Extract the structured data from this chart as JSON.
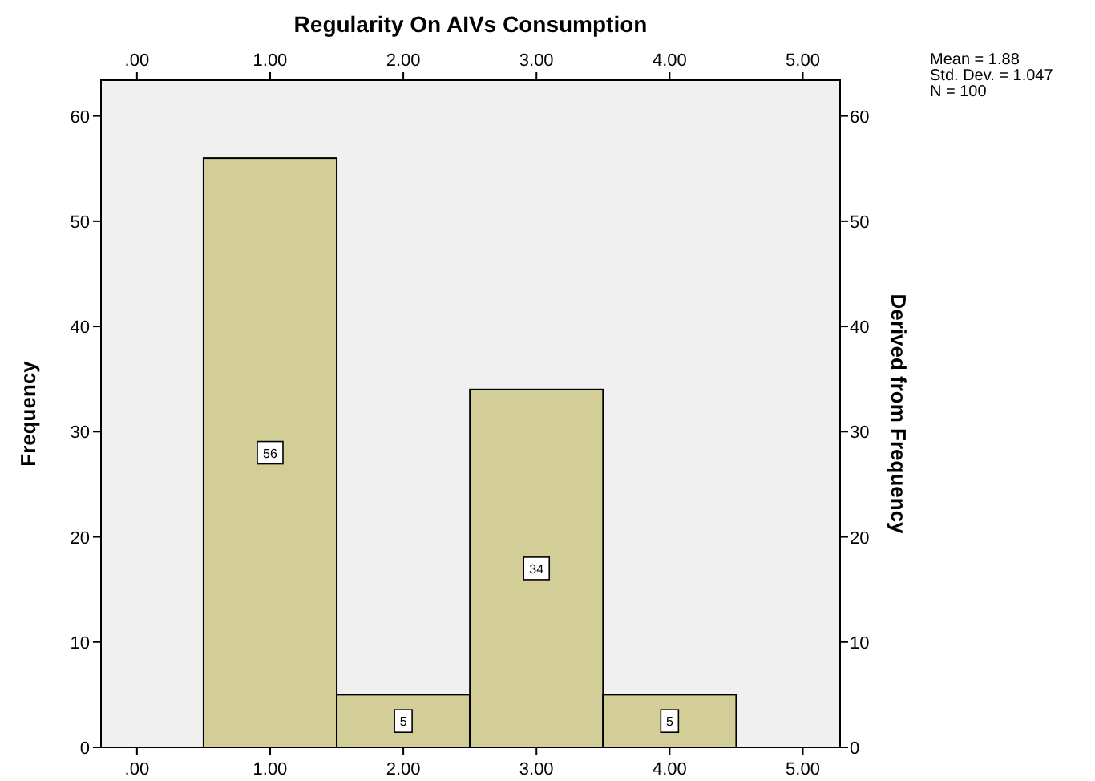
{
  "chart_data": {
    "type": "histogram",
    "title": "Regularity On AIVs Consumption",
    "ylabel": "Frequency",
    "y2label": "Derived from Frequency",
    "bins": [
      0.5,
      1.5,
      2.5,
      3.5,
      4.5
    ],
    "values": [
      56,
      5,
      34,
      5
    ],
    "color": "#d3ce97",
    "data_labels": true,
    "xlim": [
      -0.27,
      5.28
    ],
    "xticks": [
      {
        "value": 0,
        "label": ".00"
      },
      {
        "value": 1,
        "label": "1.00"
      },
      {
        "value": 2,
        "label": "2.00"
      },
      {
        "value": 3,
        "label": "3.00"
      },
      {
        "value": 4,
        "label": "4.00"
      },
      {
        "value": 5,
        "label": "5.00"
      }
    ],
    "x2lim": [
      -0.27,
      5.28
    ],
    "x2ticks": [
      {
        "value": 0,
        "label": ".00"
      },
      {
        "value": 1,
        "label": "1.00"
      },
      {
        "value": 2,
        "label": "2.00"
      },
      {
        "value": 3,
        "label": "3.00"
      },
      {
        "value": 4,
        "label": "4.00"
      },
      {
        "value": 5,
        "label": "5.00"
      }
    ],
    "ylim": [
      0,
      63.4
    ],
    "yticks": [
      0,
      10,
      20,
      30,
      40,
      50,
      60
    ],
    "y2lim": [
      0,
      63.4
    ],
    "y2ticks": [
      0,
      10,
      20,
      30,
      40,
      50,
      60
    ],
    "grid": false,
    "annotations": [
      "Mean = 1.88",
      "Std. Dev. = 1.047",
      "N = 100"
    ]
  }
}
